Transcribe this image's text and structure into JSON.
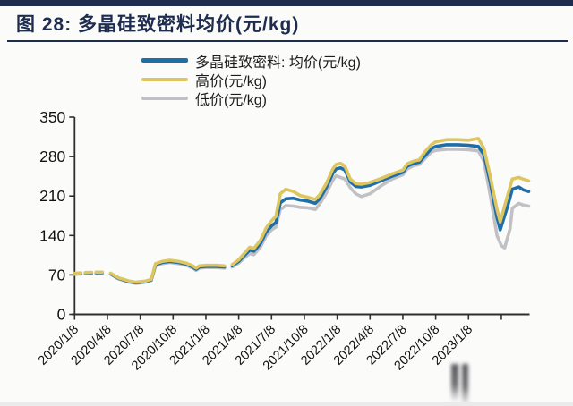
{
  "page": {
    "background": "#fbfbfa",
    "accent_navy": "#1e2c50"
  },
  "header": {
    "title": "图 28: 多晶硅致密料均价(元/kg)"
  },
  "legend": [
    {
      "label": "多晶硅致密料: 均价(元/kg)",
      "color": "#1e6fa9"
    },
    {
      "label": "高价(元/kg)",
      "color": "#ddc55f"
    },
    {
      "label": "低价(元/kg)",
      "color": "#c1c1c5"
    }
  ],
  "chart_data": {
    "type": "line",
    "title": "图 28: 多晶硅致密料均价(元/kg)",
    "xlabel": "",
    "ylabel": "",
    "ylim": [
      0,
      350
    ],
    "yticks": [
      0,
      70,
      140,
      210,
      280,
      350
    ],
    "x_tick_labels": [
      "2020/1/8",
      "2020/4/8",
      "2020/7/8",
      "2020/10/8",
      "2021/1/8",
      "2021/4/8",
      "2021/7/8",
      "2021/10/8",
      "2022/1/8",
      "2022/4/8",
      "2022/7/8",
      "2022/10/8",
      "2023/1/8"
    ],
    "x_ticks_total": 14,
    "x_unit": "months since 2020/1/8",
    "x_domain_months": [
      0,
      41.5
    ],
    "x_months_per_tick": 3,
    "grid": false,
    "legend_position": "top",
    "axis_color": "#2e2e2e",
    "tick_text_color": "#111111",
    "series": [
      {
        "id": "avg",
        "name": "多晶硅致密料: 均价(元/kg)",
        "color": "#1e6fa9",
        "z": 2,
        "head_dashed": true,
        "points": [
          [
            0,
            72
          ],
          [
            0.9,
            73
          ],
          [
            1.9,
            74
          ],
          [
            2.8,
            74
          ],
          [
            3,
            null
          ],
          [
            3.3,
            72
          ],
          [
            4,
            64
          ],
          [
            5,
            58
          ],
          [
            5.6,
            56
          ],
          [
            6.5,
            58
          ],
          [
            7,
            61
          ],
          [
            7.4,
            88
          ],
          [
            8,
            92
          ],
          [
            8.7,
            94
          ],
          [
            9.5,
            92
          ],
          [
            10.2,
            89
          ],
          [
            10.8,
            84
          ],
          [
            11.1,
            80
          ],
          [
            11.4,
            84
          ],
          [
            12,
            85
          ],
          [
            13,
            85
          ],
          [
            13.7,
            84
          ],
          [
            13.9,
            null
          ],
          [
            14.4,
            86
          ],
          [
            15,
            94
          ],
          [
            15.5,
            104
          ],
          [
            16,
            114
          ],
          [
            16.4,
            112
          ],
          [
            17,
            126
          ],
          [
            17.5,
            146
          ],
          [
            18,
            157
          ],
          [
            18.4,
            163
          ],
          [
            18.8,
            198
          ],
          [
            19.3,
            205
          ],
          [
            20,
            206
          ],
          [
            20.6,
            203
          ],
          [
            21.3,
            201
          ],
          [
            22,
            197
          ],
          [
            22.4,
            205
          ],
          [
            23,
            225
          ],
          [
            23.6,
            250
          ],
          [
            23.9,
            258
          ],
          [
            24.3,
            260
          ],
          [
            24.7,
            256
          ],
          [
            25.2,
            235
          ],
          [
            25.7,
            227
          ],
          [
            26.2,
            226
          ],
          [
            27,
            229
          ],
          [
            28,
            237
          ],
          [
            29,
            245
          ],
          [
            30,
            252
          ],
          [
            30.4,
            263
          ],
          [
            31,
            268
          ],
          [
            31.5,
            270
          ],
          [
            32,
            281
          ],
          [
            32.6,
            294
          ],
          [
            33,
            298
          ],
          [
            34,
            301
          ],
          [
            35,
            301
          ],
          [
            36,
            300
          ],
          [
            36.9,
            298
          ],
          [
            37.4,
            284
          ],
          [
            38,
            233
          ],
          [
            38.6,
            172
          ],
          [
            38.9,
            150
          ],
          [
            39.6,
            194
          ],
          [
            40,
            222
          ],
          [
            40.6,
            226
          ],
          [
            41,
            221
          ],
          [
            41.5,
            218
          ]
        ]
      },
      {
        "id": "high",
        "name": "高价(元/kg)",
        "color": "#ddc55f",
        "z": 3,
        "head_dashed": true,
        "points": [
          [
            0,
            73
          ],
          [
            0.9,
            74
          ],
          [
            1.9,
            75
          ],
          [
            2.8,
            75
          ],
          [
            3,
            null
          ],
          [
            3.3,
            73
          ],
          [
            4,
            65
          ],
          [
            5,
            59
          ],
          [
            5.6,
            57
          ],
          [
            6.5,
            59
          ],
          [
            7,
            62
          ],
          [
            7.4,
            90
          ],
          [
            8,
            94
          ],
          [
            8.7,
            96
          ],
          [
            9.5,
            94
          ],
          [
            10.2,
            91
          ],
          [
            10.8,
            86
          ],
          [
            11.1,
            82
          ],
          [
            11.4,
            86
          ],
          [
            12,
            87
          ],
          [
            13,
            87
          ],
          [
            13.7,
            86
          ],
          [
            13.9,
            null
          ],
          [
            14.4,
            88
          ],
          [
            15,
            97
          ],
          [
            15.5,
            108
          ],
          [
            16,
            119
          ],
          [
            16.4,
            117
          ],
          [
            17,
            132
          ],
          [
            17.5,
            153
          ],
          [
            18,
            166
          ],
          [
            18.4,
            174
          ],
          [
            18.8,
            214
          ],
          [
            19.3,
            222
          ],
          [
            20,
            218
          ],
          [
            20.6,
            211
          ],
          [
            21.3,
            208
          ],
          [
            22,
            204
          ],
          [
            22.4,
            212
          ],
          [
            23,
            232
          ],
          [
            23.6,
            258
          ],
          [
            23.9,
            266
          ],
          [
            24.3,
            268
          ],
          [
            24.7,
            263
          ],
          [
            25.2,
            240
          ],
          [
            25.7,
            232
          ],
          [
            26.2,
            231
          ],
          [
            27,
            234
          ],
          [
            28,
            241
          ],
          [
            29,
            249
          ],
          [
            30,
            256
          ],
          [
            30.4,
            267
          ],
          [
            31,
            272
          ],
          [
            31.5,
            274
          ],
          [
            32,
            288
          ],
          [
            32.6,
            301
          ],
          [
            33,
            306
          ],
          [
            34,
            310
          ],
          [
            35,
            310
          ],
          [
            36,
            309
          ],
          [
            36.9,
            312
          ],
          [
            37.4,
            295
          ],
          [
            38,
            244
          ],
          [
            38.6,
            186
          ],
          [
            38.9,
            164
          ],
          [
            39.6,
            213
          ],
          [
            40,
            240
          ],
          [
            40.6,
            243
          ],
          [
            41,
            240
          ],
          [
            41.5,
            237
          ]
        ]
      },
      {
        "id": "low",
        "name": "低价(元/kg)",
        "color": "#c1c1c5",
        "z": 1,
        "head_dashed": true,
        "points": [
          [
            0,
            71
          ],
          [
            0.9,
            72
          ],
          [
            1.9,
            73
          ],
          [
            2.8,
            73
          ],
          [
            3,
            null
          ],
          [
            3.3,
            71
          ],
          [
            4,
            63
          ],
          [
            5,
            57
          ],
          [
            5.6,
            55
          ],
          [
            6.5,
            57
          ],
          [
            7,
            60
          ],
          [
            7.4,
            86
          ],
          [
            8,
            90
          ],
          [
            8.7,
            92
          ],
          [
            9.5,
            90
          ],
          [
            10.2,
            87
          ],
          [
            10.8,
            82
          ],
          [
            11.1,
            78
          ],
          [
            11.4,
            82
          ],
          [
            12,
            83
          ],
          [
            13,
            83
          ],
          [
            13.7,
            82
          ],
          [
            13.9,
            null
          ],
          [
            14.4,
            84
          ],
          [
            15,
            91
          ],
          [
            15.5,
            100
          ],
          [
            16,
            108
          ],
          [
            16.4,
            106
          ],
          [
            17,
            120
          ],
          [
            17.5,
            139
          ],
          [
            18,
            150
          ],
          [
            18.4,
            155
          ],
          [
            18.8,
            186
          ],
          [
            19.3,
            193
          ],
          [
            20,
            192
          ],
          [
            20.6,
            190
          ],
          [
            21.3,
            189
          ],
          [
            22,
            186
          ],
          [
            22.4,
            196
          ],
          [
            23,
            215
          ],
          [
            23.6,
            238
          ],
          [
            23.9,
            246
          ],
          [
            24.3,
            243
          ],
          [
            24.7,
            240
          ],
          [
            25.2,
            225
          ],
          [
            25.7,
            214
          ],
          [
            26.2,
            209
          ],
          [
            27,
            214
          ],
          [
            28,
            228
          ],
          [
            29,
            240
          ],
          [
            30,
            248
          ],
          [
            30.4,
            258
          ],
          [
            31,
            264
          ],
          [
            31.5,
            266
          ],
          [
            32,
            276
          ],
          [
            32.6,
            288
          ],
          [
            33,
            291
          ],
          [
            34,
            293
          ],
          [
            35,
            293
          ],
          [
            36,
            292
          ],
          [
            36.9,
            290
          ],
          [
            37.4,
            272
          ],
          [
            38,
            210
          ],
          [
            38.6,
            140
          ],
          [
            39,
            122
          ],
          [
            39.3,
            118
          ],
          [
            39.8,
            152
          ],
          [
            40,
            188
          ],
          [
            40.6,
            197
          ],
          [
            41,
            194
          ],
          [
            41.5,
            192
          ]
        ]
      }
    ]
  }
}
